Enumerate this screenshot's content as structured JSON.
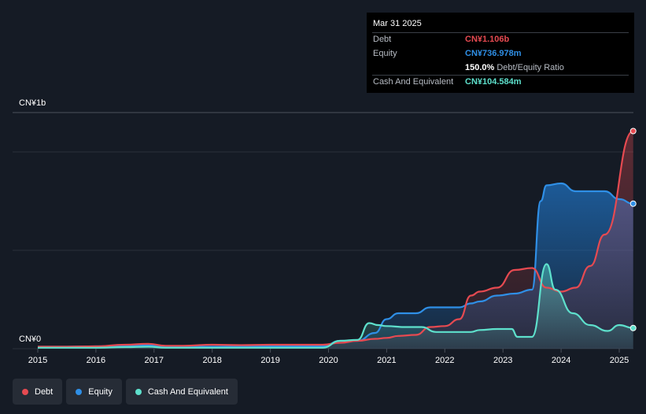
{
  "chart_data": {
    "type": "area",
    "x_ticks": [
      "2015",
      "2016",
      "2017",
      "2018",
      "2019",
      "2020",
      "2021",
      "2022",
      "2023",
      "2024",
      "2025"
    ],
    "y_labels": {
      "top": "CN¥1b",
      "bottom": "CN¥0"
    },
    "ylim": [
      0,
      1.2
    ],
    "y_unit": "CN¥ billions",
    "grid": true,
    "legend_position": "bottom-left",
    "series": [
      {
        "name": "Debt",
        "color": "#e64a51",
        "x": [
          2015.0,
          2015.5,
          2016.0,
          2016.5,
          2016.9,
          2017.2,
          2017.5,
          2018.0,
          2018.5,
          2019.0,
          2019.5,
          2019.9,
          2020.2,
          2020.5,
          2020.8,
          2021.0,
          2021.2,
          2021.5,
          2021.75,
          2022.0,
          2022.25,
          2022.45,
          2022.6,
          2022.9,
          2023.2,
          2023.5,
          2023.75,
          2024.0,
          2024.25,
          2024.5,
          2024.75,
          2025.24
        ],
        "values": [
          0.01,
          0.01,
          0.012,
          0.02,
          0.025,
          0.015,
          0.015,
          0.02,
          0.018,
          0.02,
          0.02,
          0.02,
          0.03,
          0.04,
          0.05,
          0.055,
          0.065,
          0.07,
          0.11,
          0.115,
          0.15,
          0.27,
          0.29,
          0.31,
          0.4,
          0.41,
          0.31,
          0.29,
          0.31,
          0.42,
          0.58,
          1.106
        ]
      },
      {
        "name": "Equity",
        "color": "#2f8fe6",
        "x": [
          2015.0,
          2015.5,
          2016.0,
          2016.5,
          2016.9,
          2017.2,
          2017.5,
          2018.0,
          2018.5,
          2019.0,
          2019.5,
          2019.9,
          2020.2,
          2020.5,
          2020.8,
          2021.0,
          2021.2,
          2021.5,
          2021.75,
          2022.0,
          2022.25,
          2022.45,
          2022.6,
          2022.9,
          2023.2,
          2023.5,
          2023.65,
          2023.75,
          2024.0,
          2024.25,
          2024.5,
          2024.75,
          2025.0,
          2025.24
        ],
        "values": [
          0.01,
          0.01,
          0.012,
          0.015,
          0.018,
          0.012,
          0.012,
          0.01,
          0.012,
          0.012,
          0.012,
          0.012,
          0.04,
          0.04,
          0.08,
          0.15,
          0.18,
          0.18,
          0.21,
          0.21,
          0.21,
          0.23,
          0.24,
          0.27,
          0.28,
          0.3,
          0.75,
          0.83,
          0.84,
          0.8,
          0.8,
          0.8,
          0.76,
          0.737
        ]
      },
      {
        "name": "Cash And Equivalent",
        "color": "#5ee0cc",
        "x": [
          2015.0,
          2015.5,
          2016.0,
          2016.5,
          2016.9,
          2017.2,
          2017.5,
          2018.0,
          2018.5,
          2019.0,
          2019.5,
          2019.9,
          2020.2,
          2020.5,
          2020.7,
          2020.85,
          2021.0,
          2021.3,
          2021.6,
          2021.85,
          2022.0,
          2022.25,
          2022.45,
          2022.6,
          2022.9,
          2023.15,
          2023.25,
          2023.5,
          2023.75,
          2023.9,
          2024.2,
          2024.5,
          2024.8,
          2025.0,
          2025.24
        ],
        "values": [
          0.005,
          0.005,
          0.005,
          0.008,
          0.01,
          0.005,
          0.005,
          0.005,
          0.005,
          0.005,
          0.005,
          0.005,
          0.04,
          0.045,
          0.13,
          0.12,
          0.115,
          0.11,
          0.11,
          0.085,
          0.085,
          0.085,
          0.085,
          0.095,
          0.1,
          0.1,
          0.06,
          0.06,
          0.43,
          0.3,
          0.18,
          0.12,
          0.09,
          0.12,
          0.105
        ]
      }
    ]
  },
  "tooltip": {
    "date": "Mar 31 2025",
    "rows": [
      {
        "label": "Debt",
        "value": "CN¥1.106b",
        "color": "#e64a51"
      },
      {
        "label": "Equity",
        "value": "CN¥736.978m",
        "color": "#2f8fe6"
      },
      {
        "label": "",
        "value": "150.0%",
        "suffix": "Debt/Equity Ratio",
        "color": "#ffffff"
      },
      {
        "label": "Cash And Equivalent",
        "value": "CN¥104.584m",
        "color": "#5ee0cc"
      }
    ]
  },
  "legend": {
    "items": [
      {
        "label": "Debt",
        "color": "#e64a51"
      },
      {
        "label": "Equity",
        "color": "#2f8fe6"
      },
      {
        "label": "Cash And Equivalent",
        "color": "#5ee0cc"
      }
    ]
  }
}
